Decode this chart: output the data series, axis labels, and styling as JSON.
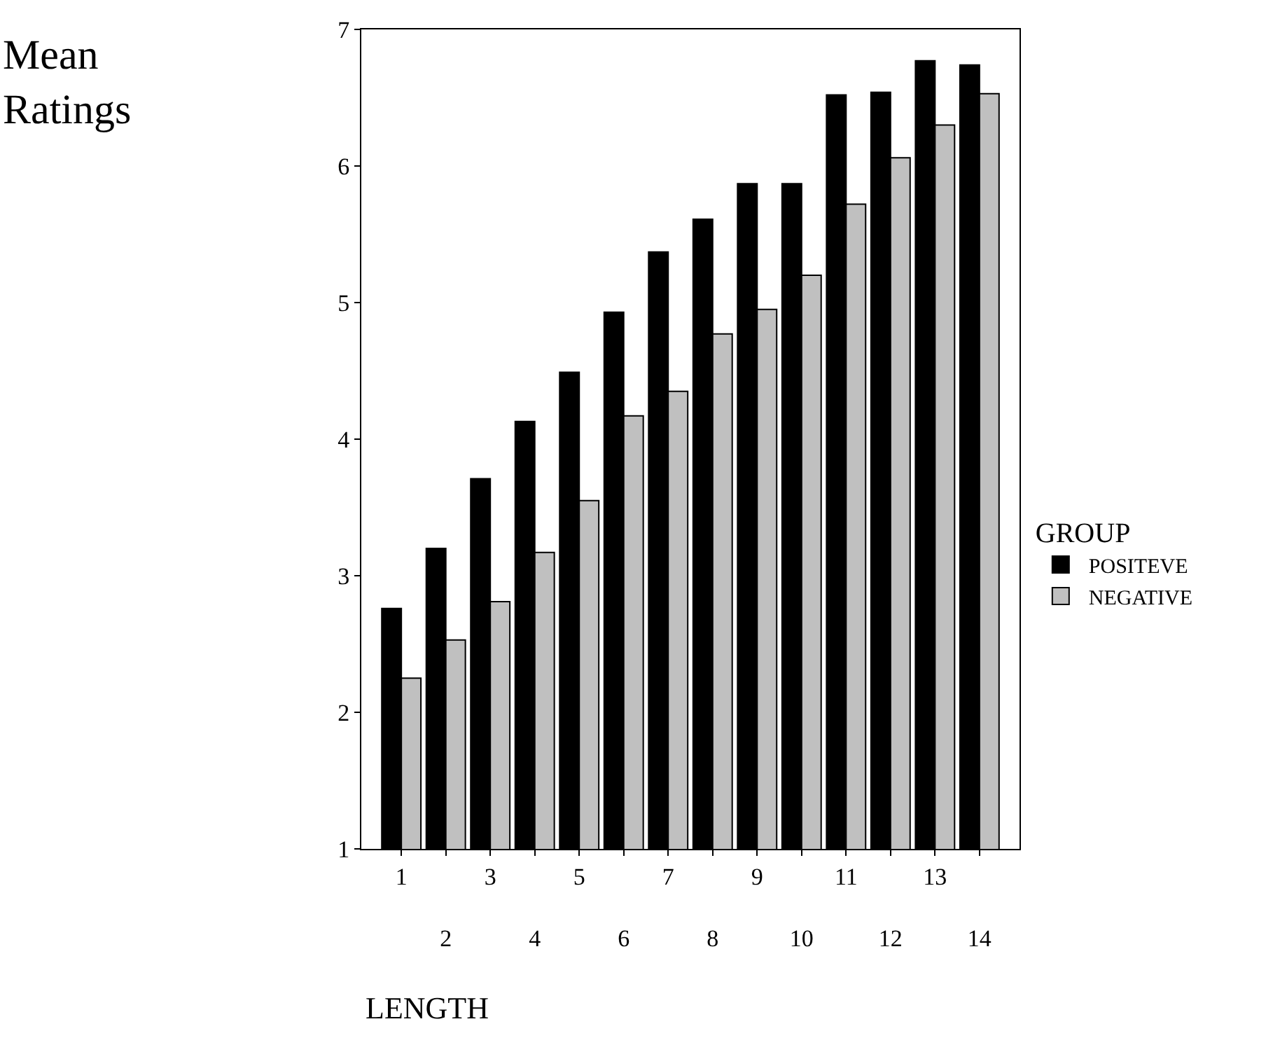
{
  "chart_data": {
    "type": "bar",
    "xlabel": "LENGTH",
    "ylabel": "Mean Ratings",
    "legend_title": "GROUP",
    "categories": [
      "1",
      "2",
      "3",
      "4",
      "5",
      "6",
      "7",
      "8",
      "9",
      "10",
      "11",
      "12",
      "13",
      "14"
    ],
    "series": [
      {
        "name": "POSITEVE",
        "color": "#000000",
        "values": [
          2.76,
          3.2,
          3.71,
          4.13,
          4.49,
          4.93,
          5.37,
          5.61,
          5.87,
          5.87,
          6.52,
          6.54,
          6.77,
          6.74
        ]
      },
      {
        "name": "NEGATIVE",
        "color": "#c0c0c0",
        "values": [
          2.25,
          2.53,
          2.81,
          3.17,
          3.55,
          4.17,
          4.35,
          4.77,
          4.95,
          5.2,
          5.72,
          6.06,
          6.3,
          6.53
        ]
      }
    ],
    "ylim": [
      1,
      7
    ],
    "yticks": [
      1,
      2,
      3,
      4,
      5,
      6,
      7
    ],
    "grid": false,
    "legend": "right"
  }
}
